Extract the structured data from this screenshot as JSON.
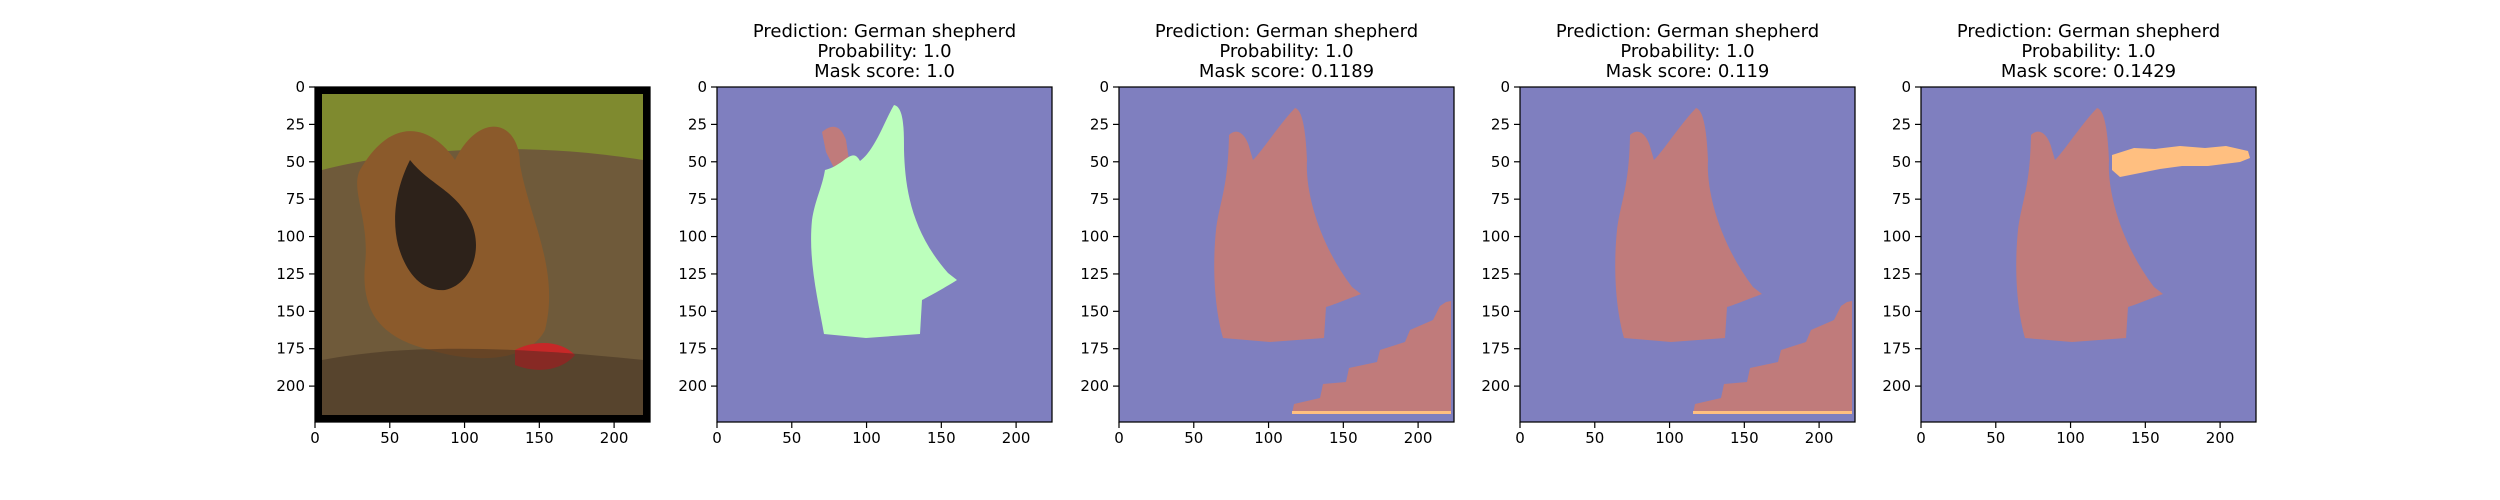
{
  "figure": {
    "background": "#ffffff",
    "panels": [
      {
        "name": "input-image",
        "kind": "photo",
        "title_lines": [],
        "xticks": [
          0,
          50,
          100,
          150,
          200
        ],
        "yticks": [
          0,
          25,
          50,
          75,
          100,
          125,
          150,
          175,
          200
        ],
        "xlim": [
          0,
          224
        ],
        "ylim": [
          224,
          0
        ]
      },
      {
        "name": "mask-1",
        "kind": "mask",
        "title_lines": [
          "Prediction: German shepherd",
          "Probability: 1.0",
          "Mask score: 1.0"
        ],
        "xticks": [
          0,
          50,
          100,
          150,
          200
        ],
        "yticks": [
          0,
          25,
          50,
          75,
          100,
          125,
          150,
          175,
          200
        ],
        "xlim": [
          0,
          224
        ],
        "ylim": [
          224,
          0
        ]
      },
      {
        "name": "mask-2",
        "kind": "mask",
        "title_lines": [
          "Prediction: German shepherd",
          "Probability: 1.0",
          "Mask score: 0.1189"
        ],
        "xticks": [
          0,
          50,
          100,
          150,
          200
        ],
        "yticks": [
          0,
          25,
          50,
          75,
          100,
          125,
          150,
          175,
          200
        ],
        "xlim": [
          0,
          224
        ],
        "ylim": [
          224,
          0
        ]
      },
      {
        "name": "mask-3",
        "kind": "mask",
        "title_lines": [
          "Prediction: German shepherd",
          "Probability: 1.0",
          "Mask score: 0.119"
        ],
        "xticks": [
          0,
          50,
          100,
          150,
          200
        ],
        "yticks": [
          0,
          25,
          50,
          75,
          100,
          125,
          150,
          175,
          200
        ],
        "xlim": [
          0,
          224
        ],
        "ylim": [
          224,
          0
        ]
      },
      {
        "name": "mask-4",
        "kind": "mask",
        "title_lines": [
          "Prediction: German shepherd",
          "Probability: 1.0",
          "Mask score: 0.1429"
        ],
        "xticks": [
          0,
          50,
          100,
          150,
          200
        ],
        "yticks": [
          0,
          25,
          50,
          75,
          100,
          125,
          150,
          175,
          200
        ],
        "xlim": [
          0,
          224
        ],
        "ylim": [
          224,
          0
        ]
      }
    ]
  },
  "colors": {
    "mask_background": "#7f7fbf",
    "mask_dog_red": "#c07b7b",
    "mask_dog_green": "#bcffbc",
    "mask_orange": "#ffbf80",
    "photo_grass": "#7f8a2f",
    "photo_water": "#6f5a3a",
    "photo_dog_dark": "#2d221a",
    "photo_dog_tan": "#8b5a2b",
    "photo_red_toy": "#c62828"
  }
}
